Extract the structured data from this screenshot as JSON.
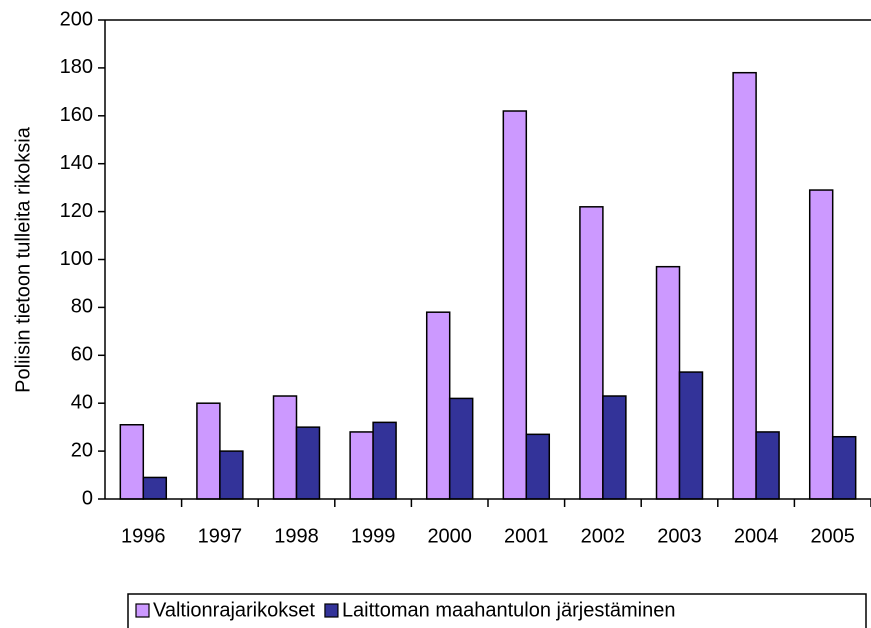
{
  "chart_data": {
    "type": "bar",
    "y_label": "Poliisin tietoon tulleita rikoksia",
    "categories": [
      "1996",
      "1997",
      "1998",
      "1999",
      "2000",
      "2001",
      "2002",
      "2003",
      "2004",
      "2005"
    ],
    "series": [
      {
        "name": "Valtionrajarikokset",
        "color": "#cc99ff",
        "values": [
          31,
          40,
          43,
          28,
          78,
          162,
          122,
          97,
          178,
          129
        ]
      },
      {
        "name": "Laittoman maahantulon järjestäminen",
        "color": "#333399",
        "values": [
          9,
          20,
          30,
          32,
          42,
          27,
          43,
          53,
          28,
          26
        ]
      }
    ],
    "ylim": [
      0,
      200
    ],
    "yticks": [
      0,
      20,
      40,
      60,
      80,
      100,
      120,
      140,
      160,
      180,
      200
    ],
    "legend": "bottom"
  }
}
